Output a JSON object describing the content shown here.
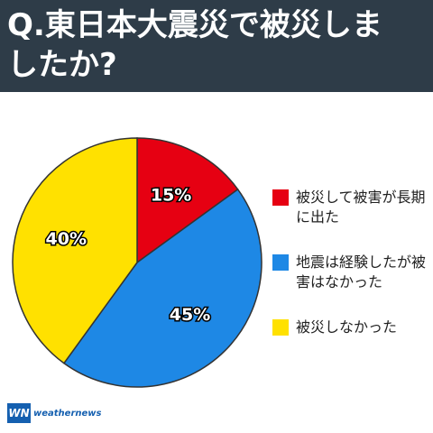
{
  "chart_data": {
    "type": "pie",
    "title": "Q.東日本大震災で被災しましたか?",
    "categories": [
      "被災して被害が長期に出た",
      "地震は経験したが被害はなかった",
      "被災しなかった"
    ],
    "values": [
      15,
      45,
      40
    ],
    "value_labels": [
      "15%",
      "45%",
      "40%"
    ],
    "colors": [
      "#e60012",
      "#1e88e5",
      "#ffe100"
    ]
  },
  "logo": {
    "mark": "WN",
    "text": "weathernews"
  }
}
